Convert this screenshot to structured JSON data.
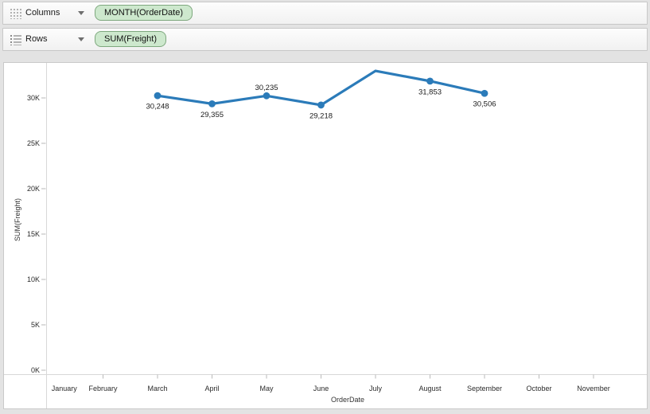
{
  "shelves": {
    "columns": {
      "label": "Columns",
      "pill": "MONTH(OrderDate)"
    },
    "rows": {
      "label": "Rows",
      "pill": "SUM(Freight)"
    }
  },
  "colors": {
    "page_bg": "#e3e3e3",
    "line": "#2b7bb9",
    "marker": "#2b7bb9",
    "pill_bg": "#cde8cd",
    "pill_border": "#7ea87e",
    "axis_line": "#d8d8d8",
    "tick_mark": "#b9b9b9",
    "tick_text": "#2b2b2b",
    "data_label": "#1a1a1a"
  },
  "chart_data": {
    "type": "line",
    "title": "",
    "xlabel": "OrderDate",
    "ylabel": "SUM(Freight)",
    "x_categories": [
      "January",
      "February",
      "March",
      "April",
      "May",
      "June",
      "July",
      "August",
      "September",
      "October",
      "November"
    ],
    "y_tick_labels": [
      "0K",
      "5K",
      "10K",
      "15K",
      "20K",
      "25K",
      "30K"
    ],
    "y_tick_values": [
      0,
      5000,
      10000,
      15000,
      20000,
      25000,
      30000
    ],
    "ylim": [
      0,
      33800
    ],
    "grid": false,
    "legend": false,
    "series": [
      {
        "name": "SUM(Freight)",
        "points": [
          {
            "x": "March",
            "value": 30248,
            "label": "30,248",
            "label_pos": "below",
            "marker": true,
            "estimated": false
          },
          {
            "x": "April",
            "value": 29355,
            "label": "29,355",
            "label_pos": "below",
            "marker": true,
            "estimated": false
          },
          {
            "x": "May",
            "value": 30235,
            "label": "30,235",
            "label_pos": "above",
            "marker": true,
            "estimated": false
          },
          {
            "x": "June",
            "value": 29218,
            "label": "29,218",
            "label_pos": "below",
            "marker": true,
            "estimated": false
          },
          {
            "x": "July",
            "value": 32980,
            "label": "",
            "label_pos": "none",
            "marker": false,
            "estimated": true
          },
          {
            "x": "August",
            "value": 31853,
            "label": "31,853",
            "label_pos": "below",
            "marker": true,
            "estimated": false
          },
          {
            "x": "September",
            "value": 30506,
            "label": "30,506",
            "label_pos": "below",
            "marker": true,
            "estimated": false
          }
        ]
      }
    ]
  }
}
